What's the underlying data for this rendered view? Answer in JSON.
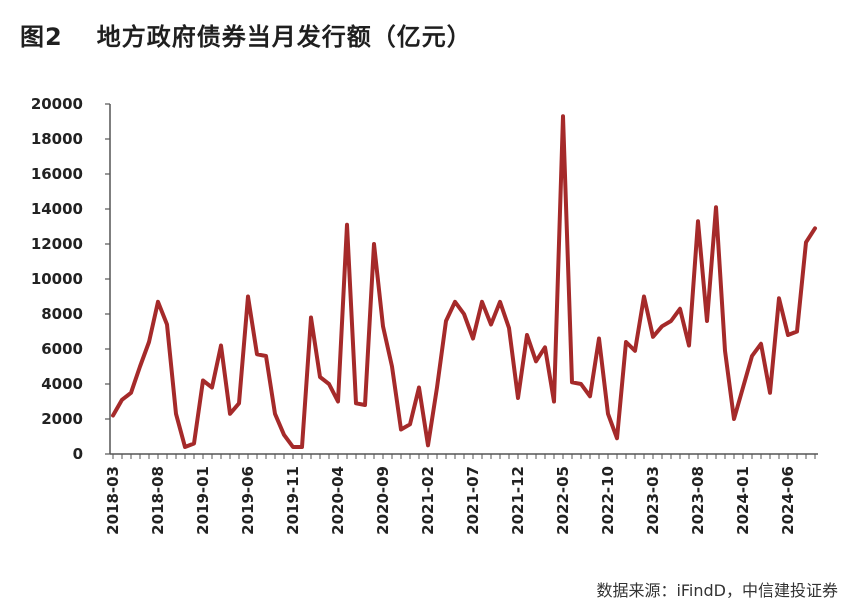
{
  "figure": {
    "number": "图2",
    "title": "地方政府债券当月发行额（亿元）",
    "source": "数据来源：iFindD，中信建投证券"
  },
  "colors": {
    "line": "#a52a2a",
    "axis": "#555555",
    "text": "#222222"
  },
  "chart_data": {
    "type": "line",
    "title": "地方政府债券当月发行额（亿元）",
    "xlabel": "",
    "ylabel": "",
    "ylim": [
      0,
      20000
    ],
    "yticks": [
      0,
      2000,
      4000,
      6000,
      8000,
      10000,
      12000,
      14000,
      16000,
      18000,
      20000
    ],
    "xtick_labels": [
      "2018-03",
      "2018-08",
      "2019-01",
      "2019-06",
      "2019-11",
      "2020-04",
      "2020-09",
      "2021-02",
      "2021-07",
      "2021-12",
      "2022-05",
      "2022-10",
      "2023-03",
      "2023-08",
      "2024-01",
      "2024-06"
    ],
    "grid": false,
    "legend": "none",
    "x": [
      "2018-03",
      "2018-04",
      "2018-05",
      "2018-06",
      "2018-07",
      "2018-08",
      "2018-09",
      "2018-10",
      "2018-11",
      "2018-12",
      "2019-01",
      "2019-02",
      "2019-03",
      "2019-04",
      "2019-05",
      "2019-06",
      "2019-07",
      "2019-08",
      "2019-09",
      "2019-10",
      "2019-11",
      "2019-12",
      "2020-01",
      "2020-02",
      "2020-03",
      "2020-04",
      "2020-05",
      "2020-06",
      "2020-07",
      "2020-08",
      "2020-09",
      "2020-10",
      "2020-11",
      "2020-12",
      "2021-01",
      "2021-02",
      "2021-03",
      "2021-04",
      "2021-05",
      "2021-06",
      "2021-07",
      "2021-08",
      "2021-09",
      "2021-10",
      "2021-11",
      "2021-12",
      "2022-01",
      "2022-02",
      "2022-03",
      "2022-04",
      "2022-05",
      "2022-06",
      "2022-07",
      "2022-08",
      "2022-09",
      "2022-10",
      "2022-11",
      "2022-12",
      "2023-01",
      "2023-02",
      "2023-03",
      "2023-04",
      "2023-05",
      "2023-06",
      "2023-07",
      "2023-08",
      "2023-09",
      "2023-10",
      "2023-11",
      "2023-12",
      "2024-01",
      "2024-02",
      "2024-03",
      "2024-04",
      "2024-05",
      "2024-06",
      "2024-07",
      "2024-08",
      "2024-09"
    ],
    "series": [
      {
        "values": [
          2200,
          3100,
          3500,
          5000,
          6400,
          8700,
          7400,
          2300,
          400,
          600,
          4200,
          3800,
          6200,
          2300,
          2900,
          9000,
          5700,
          5600,
          2300,
          1100,
          400,
          400,
          7800,
          4400,
          4000,
          3000,
          13100,
          2900,
          2800,
          12000,
          7300,
          5000,
          1400,
          1700,
          3800,
          500,
          3800,
          7600,
          8700,
          8000,
          6600,
          8700,
          7400,
          8700,
          7200,
          3200,
          6800,
          5300,
          6100,
          3000,
          19300,
          4100,
          4000,
          3300,
          6600,
          2300,
          900,
          6400,
          5900,
          9000,
          6700,
          7300,
          7600,
          8300,
          6200,
          13300,
          7600,
          14100,
          5900,
          2000,
          3800,
          5600,
          6300,
          3500,
          8900,
          6800,
          7000,
          12100,
          12900
        ]
      }
    ]
  }
}
